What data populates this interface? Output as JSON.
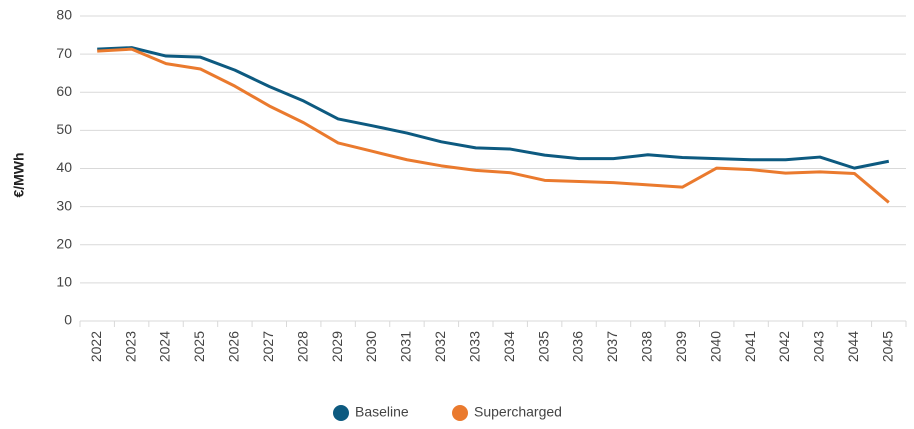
{
  "chart_data": {
    "type": "line",
    "y_label": "€/MWh",
    "categories": [
      2022,
      2023,
      2024,
      2025,
      2026,
      2027,
      2028,
      2029,
      2030,
      2031,
      2032,
      2033,
      2034,
      2035,
      2036,
      2037,
      2038,
      2039,
      2040,
      2041,
      2042,
      2043,
      2044,
      2045
    ],
    "series": [
      {
        "name": "Baseline",
        "color": "#0d5a80",
        "values": [
          71.3,
          71.7,
          69.5,
          69.2,
          65.8,
          61.5,
          57.7,
          53,
          51.2,
          49.3,
          47,
          45.4,
          45.1,
          43.5,
          42.6,
          42.6,
          43.6,
          42.9,
          42.6,
          42.3,
          42.3,
          43,
          40.1,
          41.9
        ]
      },
      {
        "name": "Supercharged",
        "color": "#ea7a2e",
        "values": [
          70.8,
          71.3,
          67.5,
          66.1,
          61.6,
          56.4,
          52,
          46.7,
          44.5,
          42.3,
          40.7,
          39.5,
          38.9,
          36.9,
          36.6,
          36.3,
          35.7,
          35.1,
          40.1,
          39.7,
          38.8,
          39.1,
          38.7,
          31.1
        ]
      }
    ],
    "ylim": [
      0,
      80
    ],
    "yticks": [
      0,
      10,
      20,
      30,
      40,
      50,
      60,
      70,
      80
    ],
    "grid": true,
    "legend": "bottom"
  }
}
